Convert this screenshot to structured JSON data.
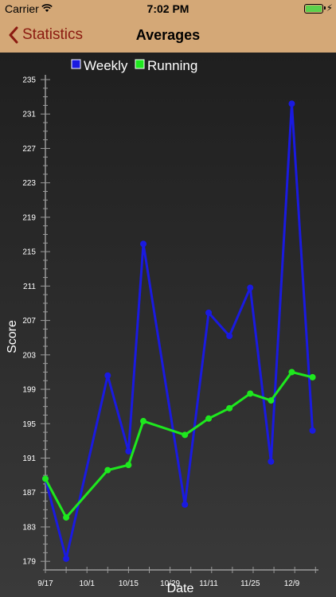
{
  "status_bar": {
    "carrier": "Carrier",
    "time": "7:02 PM",
    "battery_level": 1.0
  },
  "nav": {
    "back_label": "Statistics",
    "title": "Averages"
  },
  "colors": {
    "bar": "#d4a877",
    "back": "#8b1a10",
    "weekly": "#1a1ae0",
    "running": "#1ee81e"
  },
  "chart_data": {
    "type": "line",
    "title": "",
    "xlabel": "Date",
    "ylabel": "Score",
    "legend_position": "top-left",
    "ylim": [
      178,
      235
    ],
    "yticks": [
      179,
      183,
      187,
      191,
      195,
      199,
      203,
      207,
      211,
      215,
      219,
      223,
      227,
      231,
      235
    ],
    "xlim": [
      "9/17",
      "12/18"
    ],
    "xtick_labels": [
      "9/17",
      "10/1",
      "10/15",
      "10/29",
      "11/11",
      "11/25",
      "12/9"
    ],
    "xtick_dates": [
      "9/17",
      "10/1",
      "10/15",
      "10/29",
      "11/11",
      "11/25",
      "12/9"
    ],
    "series": [
      {
        "name": "Weekly",
        "points": [
          {
            "x": "9/17",
            "y": 188.6
          },
          {
            "x": "9/24",
            "y": 179.3
          },
          {
            "x": "10/8",
            "y": 200.6
          },
          {
            "x": "10/15",
            "y": 191.8
          },
          {
            "x": "10/20",
            "y": 215.9
          },
          {
            "x": "11/3",
            "y": 185.6
          },
          {
            "x": "11/11",
            "y": 207.9
          },
          {
            "x": "11/18",
            "y": 205.2
          },
          {
            "x": "11/25",
            "y": 210.8
          },
          {
            "x": "12/2",
            "y": 190.6
          },
          {
            "x": "12/9",
            "y": 232.2
          },
          {
            "x": "12/16",
            "y": 194.2
          }
        ]
      },
      {
        "name": "Running",
        "points": [
          {
            "x": "9/17",
            "y": 188.6
          },
          {
            "x": "9/24",
            "y": 184.1
          },
          {
            "x": "10/8",
            "y": 189.6
          },
          {
            "x": "10/15",
            "y": 190.2
          },
          {
            "x": "10/20",
            "y": 195.3
          },
          {
            "x": "11/3",
            "y": 193.7
          },
          {
            "x": "11/11",
            "y": 195.6
          },
          {
            "x": "11/18",
            "y": 196.8
          },
          {
            "x": "11/25",
            "y": 198.5
          },
          {
            "x": "12/2",
            "y": 197.7
          },
          {
            "x": "12/9",
            "y": 201.0
          },
          {
            "x": "12/16",
            "y": 200.4
          }
        ]
      }
    ]
  }
}
